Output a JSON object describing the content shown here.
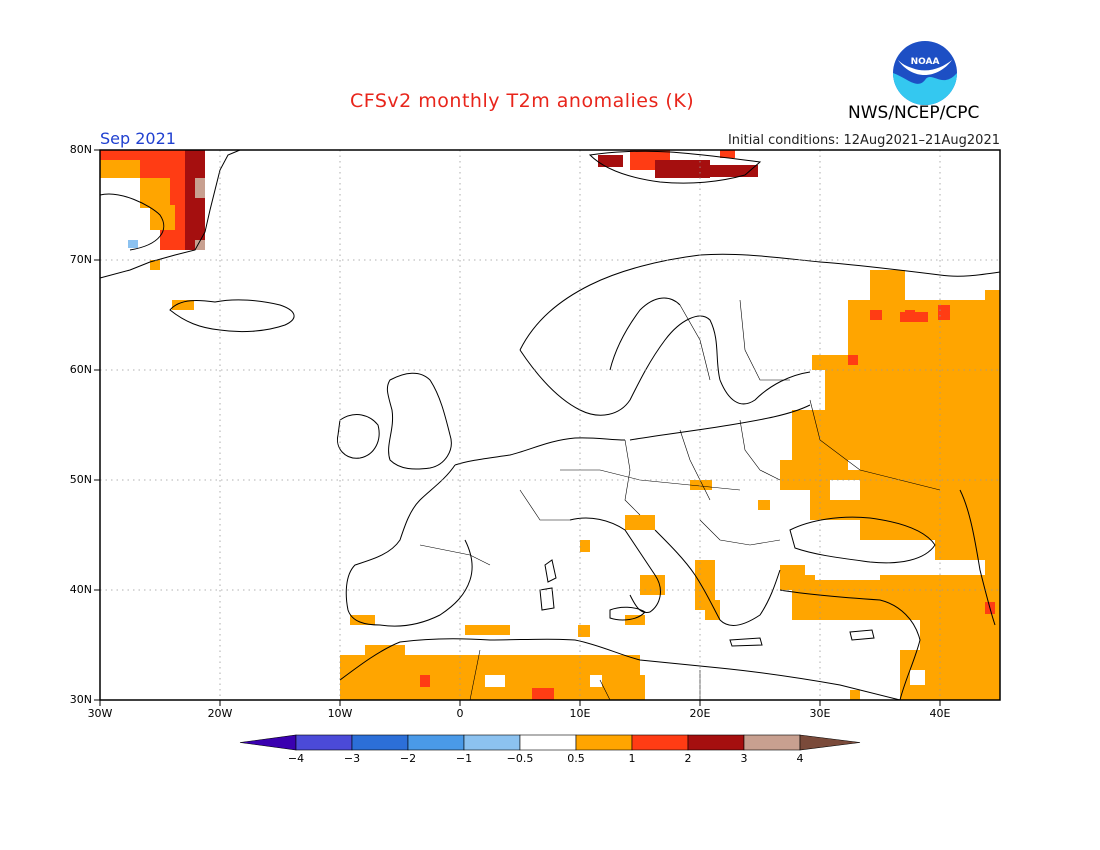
{
  "title": "CFSv2 monthly T2m anomalies (K)",
  "agency": "NWS/NCEP/CPC",
  "logo_text": "NOAA",
  "month": "Sep 2021",
  "initial_conditions": "Initial conditions: 12Aug2021–21Aug2021",
  "lat_labels": [
    "80N",
    "70N",
    "60N",
    "50N",
    "40N",
    "30N"
  ],
  "lon_labels": [
    "30W",
    "20W",
    "10W",
    "0",
    "10E",
    "20E",
    "30E",
    "40E"
  ],
  "colorbar": {
    "labels": [
      "−4",
      "−3",
      "−2",
      "−1",
      "−0.5",
      "0.5",
      "1",
      "2",
      "3",
      "4"
    ],
    "colors": [
      "#3a00b0",
      "#4b4ad8",
      "#2c6fd8",
      "#4a9ae8",
      "#8cc2f0",
      "#ffffff",
      "#ffa500",
      "#ff3c14",
      "#a50f0f",
      "#c8a090",
      "#7a4a3a"
    ]
  },
  "colors": {
    "land_line": "#000000",
    "grid": "#888888",
    "warm1": "#ffa500",
    "warm2": "#ff3c14",
    "warm3": "#a50f0f",
    "warm4": "#c8a090",
    "cool1": "#8cc2f0"
  }
}
